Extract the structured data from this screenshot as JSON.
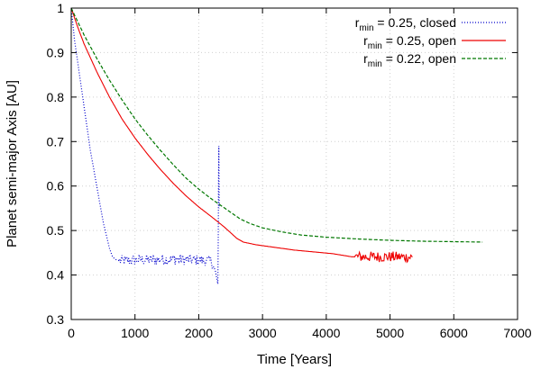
{
  "chart_data": {
    "type": "line",
    "title": "",
    "xlabel": "Time [Years]",
    "ylabel": "Planet semi-major Axis [AU]",
    "xlim": [
      0,
      7000
    ],
    "ylim": [
      0.3,
      1.0
    ],
    "xticks": [
      0,
      1000,
      2000,
      3000,
      4000,
      5000,
      6000,
      7000
    ],
    "yticks": [
      0.3,
      0.4,
      0.5,
      0.6,
      0.7,
      0.8,
      0.9,
      1.0
    ],
    "xtick_labels": [
      "0",
      "1000",
      "2000",
      "3000",
      "4000",
      "5000",
      "6000",
      "7000"
    ],
    "ytick_labels": [
      "0.3",
      "0.4",
      "0.5",
      "0.6",
      "0.7",
      "0.8",
      "0.9",
      "1"
    ],
    "grid": true,
    "legend_position": "top-right",
    "series": [
      {
        "name": "r_min = 0.25, closed",
        "legend_main": "r",
        "legend_sub": "min",
        "legend_rest": " = 0.25, closed",
        "color": "#0000cc",
        "style": "dotted",
        "noise": 0.012,
        "noise_after": 760,
        "x": [
          0,
          50,
          100,
          150,
          200,
          250,
          300,
          350,
          400,
          450,
          500,
          550,
          600,
          650,
          700,
          760,
          900,
          1100,
          1300,
          1500,
          1700,
          1900,
          2100,
          2200,
          2260,
          2280,
          2300,
          2305,
          2310,
          2315,
          2320
        ],
        "y": [
          1.0,
          0.93,
          0.88,
          0.83,
          0.78,
          0.73,
          0.68,
          0.64,
          0.6,
          0.56,
          0.52,
          0.49,
          0.46,
          0.44,
          0.435,
          0.432,
          0.433,
          0.434,
          0.434,
          0.435,
          0.435,
          0.434,
          0.433,
          0.43,
          0.41,
          0.395,
          0.38,
          0.47,
          0.6,
          0.69,
          0.55
        ]
      },
      {
        "name": "r_min = 0.25, open",
        "legend_main": "r",
        "legend_sub": "min",
        "legend_rest": " = 0.25, open",
        "color": "#ee0000",
        "style": "solid",
        "noise": 0.0,
        "noise_windows": [
          [
            4450,
            5350,
            0.012
          ]
        ],
        "x": [
          0,
          100,
          200,
          400,
          600,
          800,
          1000,
          1200,
          1400,
          1600,
          1800,
          2000,
          2200,
          2400,
          2600,
          2700,
          2900,
          3200,
          3500,
          3800,
          4100,
          4400,
          4700,
          5000,
          5350
        ],
        "y": [
          1.0,
          0.958,
          0.92,
          0.857,
          0.8,
          0.75,
          0.708,
          0.671,
          0.637,
          0.606,
          0.578,
          0.553,
          0.531,
          0.508,
          0.482,
          0.474,
          0.468,
          0.462,
          0.456,
          0.452,
          0.448,
          0.441,
          0.441,
          0.441,
          0.44
        ]
      },
      {
        "name": "r_min = 0.22, open",
        "legend_main": "r",
        "legend_sub": "min",
        "legend_rest": " = 0.22, open",
        "color": "#007700",
        "style": "dashed",
        "noise": 0.0,
        "x": [
          0,
          100,
          200,
          400,
          600,
          800,
          1000,
          1200,
          1400,
          1600,
          1800,
          2000,
          2200,
          2400,
          2650,
          2800,
          3000,
          3300,
          3600,
          4000,
          4500,
          5000,
          5500,
          6000,
          6450
        ],
        "y": [
          1.0,
          0.97,
          0.94,
          0.887,
          0.838,
          0.793,
          0.751,
          0.714,
          0.68,
          0.648,
          0.618,
          0.593,
          0.571,
          0.551,
          0.526,
          0.516,
          0.506,
          0.497,
          0.49,
          0.485,
          0.481,
          0.478,
          0.476,
          0.475,
          0.474
        ]
      }
    ]
  }
}
